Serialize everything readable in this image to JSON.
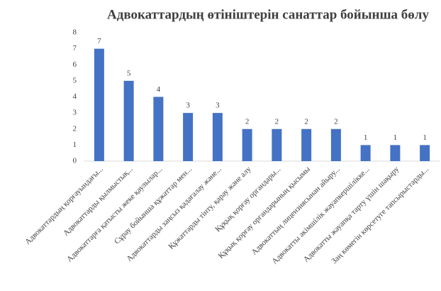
{
  "chart_data": {
    "type": "bar",
    "title": "Адвокаттардың өтініштерін санаттар бойынша бөлу",
    "categories": [
      "Адвокаттардың қорғауындағы...",
      "Адвокаттарды қылмыстық...",
      "Адвокаттарға қатысты жеке қаулылар...",
      "Сұрау бойынша құжаттар мен...",
      "Адвокаттарды заңсыз қадағалау және...",
      "Құжаттарды тінту, қарау және алу",
      "Құқық қорғау органдары...",
      "Құқық қорғау органдарының қысымы",
      "Адвокаттың лицензиясынан айыру...",
      "Адвокатты әкімшілік жауапкершілікке...",
      "Адвокатты жауапқа тарту үшін шақыру",
      "Заң көмегін көрсетуге тапсырыстарды..."
    ],
    "values": [
      7,
      5,
      4,
      3,
      3,
      2,
      2,
      2,
      2,
      1,
      1,
      1
    ],
    "color": "#4472c4",
    "ylim": [
      0,
      8
    ],
    "yticks": [
      0,
      1,
      2,
      3,
      4,
      5,
      6,
      7,
      8
    ],
    "grid": false
  }
}
